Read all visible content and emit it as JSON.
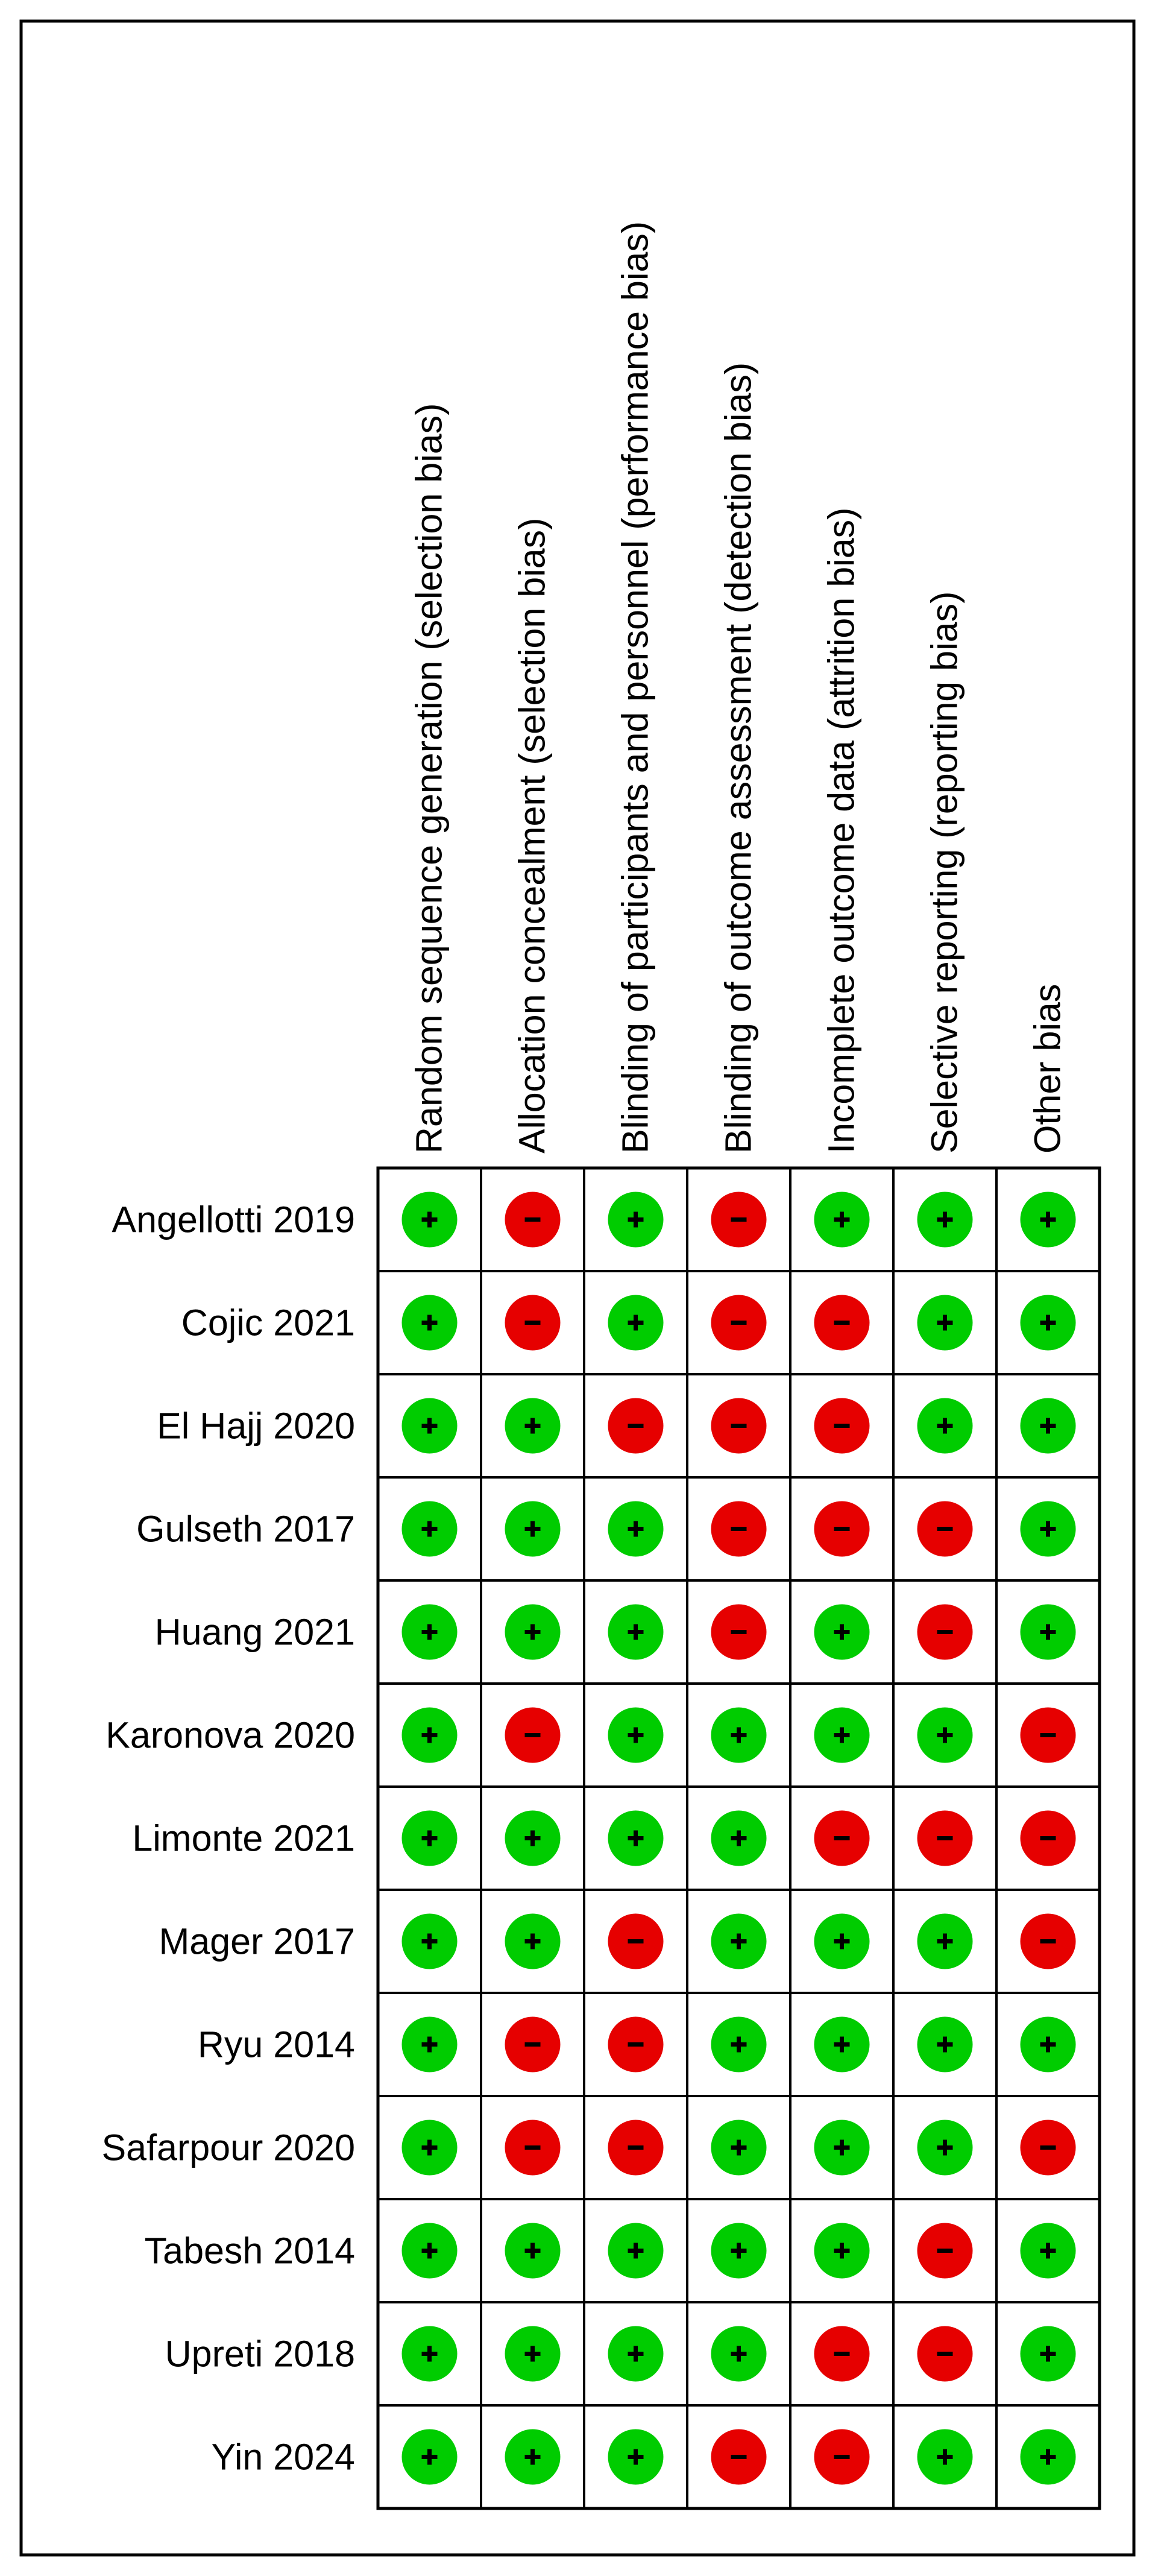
{
  "chart_data": {
    "type": "table",
    "title": "",
    "domains": [
      "Random sequence generation (selection bias)",
      "Allocation concealment (selection bias)",
      "Blinding of participants and personnel (performance bias)",
      "Blinding of outcome assessment (detection bias)",
      "Incomplete outcome data (attrition bias)",
      "Selective reporting (reporting bias)",
      "Other bias"
    ],
    "studies": [
      {
        "name": "Angellotti 2019",
        "judgements": [
          "+",
          "-",
          "+",
          "-",
          "+",
          "+",
          "+"
        ]
      },
      {
        "name": "Cojic 2021",
        "judgements": [
          "+",
          "-",
          "+",
          "-",
          "-",
          "+",
          "+"
        ]
      },
      {
        "name": "El Hajj 2020",
        "judgements": [
          "+",
          "+",
          "-",
          "-",
          "-",
          "+",
          "+"
        ]
      },
      {
        "name": "Gulseth 2017",
        "judgements": [
          "+",
          "+",
          "+",
          "-",
          "-",
          "-",
          "+"
        ]
      },
      {
        "name": "Huang 2021",
        "judgements": [
          "+",
          "+",
          "+",
          "-",
          "+",
          "-",
          "+"
        ]
      },
      {
        "name": "Karonova 2020",
        "judgements": [
          "+",
          "-",
          "+",
          "+",
          "+",
          "+",
          "-"
        ]
      },
      {
        "name": "Limonte 2021",
        "judgements": [
          "+",
          "+",
          "+",
          "+",
          "-",
          "-",
          "-"
        ]
      },
      {
        "name": "Mager 2017",
        "judgements": [
          "+",
          "+",
          "-",
          "+",
          "+",
          "+",
          "-"
        ]
      },
      {
        "name": "Ryu 2014",
        "judgements": [
          "+",
          "-",
          "-",
          "+",
          "+",
          "+",
          "+"
        ]
      },
      {
        "name": "Safarpour  2020",
        "judgements": [
          "+",
          "-",
          "-",
          "+",
          "+",
          "+",
          "-"
        ]
      },
      {
        "name": "Tabesh 2014",
        "judgements": [
          "+",
          "+",
          "+",
          "+",
          "+",
          "-",
          "+"
        ]
      },
      {
        "name": "Upreti 2018",
        "judgements": [
          "+",
          "+",
          "+",
          "+",
          "-",
          "-",
          "+"
        ]
      },
      {
        "name": "Yin 2024",
        "judgements": [
          "+",
          "+",
          "+",
          "-",
          "-",
          "+",
          "+"
        ]
      }
    ],
    "colors": {
      "low_risk": "#00cc00",
      "high_risk": "#e60000",
      "symbol": "#000000",
      "grid": "#000000",
      "background": "#ffffff"
    }
  }
}
